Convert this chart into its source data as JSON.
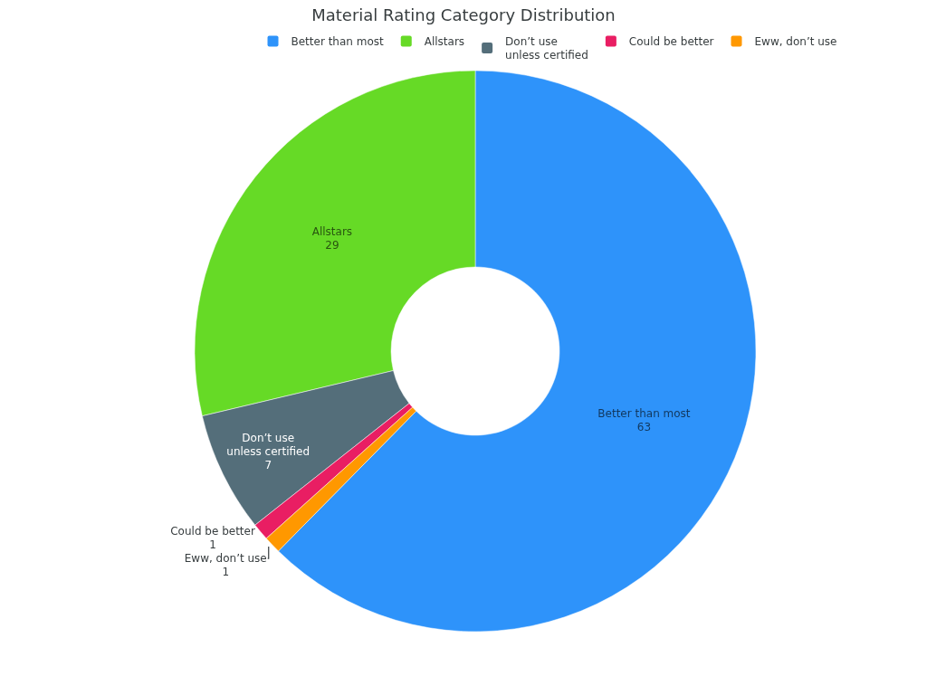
{
  "chart_data": {
    "type": "donut",
    "title": "Material Rating Category Distribution",
    "categories": [
      "Better than most",
      "Allstars",
      "Don’t use unless certified",
      "Could be better",
      "Eww, don’t use"
    ],
    "values": [
      63,
      29,
      7,
      1,
      1
    ],
    "colors": [
      "#2e93fa",
      "#66da26",
      "#546e7a",
      "#e91e63",
      "#ff9800"
    ],
    "data_labels": true,
    "legend": "top"
  }
}
